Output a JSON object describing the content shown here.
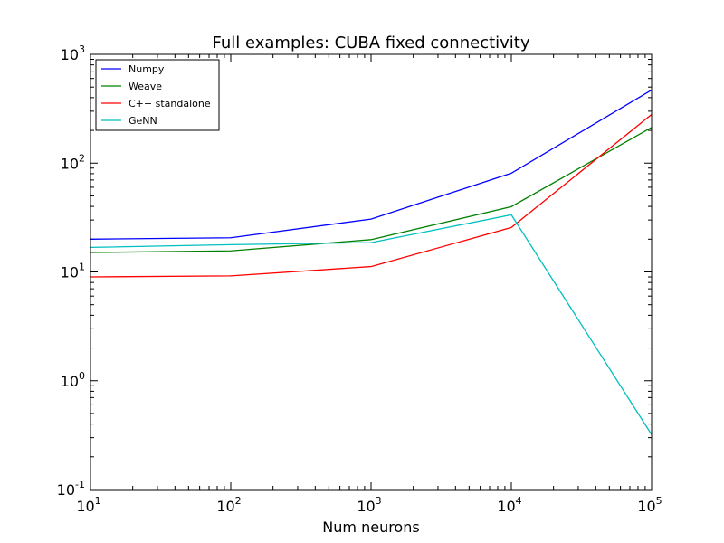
{
  "chart_data": {
    "type": "line",
    "title": "Full examples: CUBA fixed connectivity",
    "xlabel": "Num neurons",
    "ylabel": "",
    "xscale": "log",
    "yscale": "log",
    "xlim": [
      10,
      100000
    ],
    "ylim": [
      0.1,
      1000
    ],
    "grid": false,
    "legend_position": "top-left",
    "x": [
      10,
      100,
      1000,
      10000,
      100000
    ],
    "x_tick_labels": [
      {
        "base": "10",
        "exp": "1"
      },
      {
        "base": "10",
        "exp": "2"
      },
      {
        "base": "10",
        "exp": "3"
      },
      {
        "base": "10",
        "exp": "4"
      },
      {
        "base": "10",
        "exp": "5"
      }
    ],
    "y_tick_labels": [
      {
        "base": "10",
        "exp": "-1"
      },
      {
        "base": "10",
        "exp": "0"
      },
      {
        "base": "10",
        "exp": "1"
      },
      {
        "base": "10",
        "exp": "2"
      },
      {
        "base": "10",
        "exp": "3"
      }
    ],
    "series": [
      {
        "name": "Numpy",
        "color": "#0000ff",
        "values": [
          20,
          20.6,
          30.6,
          80.8,
          470
        ]
      },
      {
        "name": "Weave",
        "color": "#008000",
        "values": [
          15.1,
          15.6,
          19.8,
          39.8,
          213
        ]
      },
      {
        "name": "C++ standalone",
        "color": "#ff0000",
        "values": [
          9.0,
          9.2,
          11.2,
          25.6,
          280
        ]
      },
      {
        "name": "GeNN",
        "color": "#00bfbf",
        "values": [
          16.8,
          17.8,
          18.6,
          33.5,
          0.32
        ]
      }
    ]
  }
}
